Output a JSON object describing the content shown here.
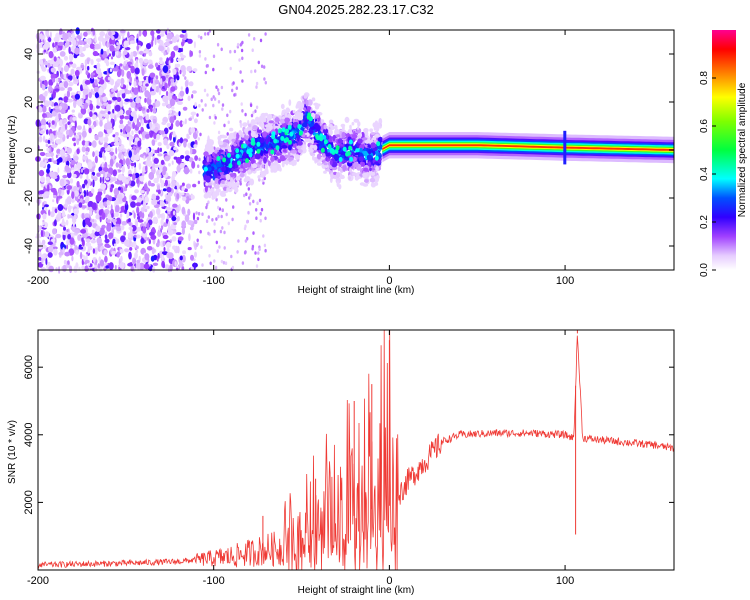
{
  "title": "GN04.2025.282.23.17.C32",
  "chart_data": [
    {
      "type": "heatmap",
      "name": "spectrogram",
      "xlabel": "Height of straight line (km)",
      "ylabel": "Frequency (Hz)",
      "xlim": [
        -200,
        162
      ],
      "ylim": [
        -50,
        50
      ],
      "xticks": [
        -200,
        -100,
        0,
        100
      ],
      "xtick_labels": [
        "-200",
        "-100",
        "0",
        "100"
      ],
      "yticks": [
        -40,
        -20,
        0,
        20,
        40
      ],
      "ytick_labels": [
        "-40",
        "-20",
        "0",
        "20",
        "40"
      ],
      "colorbar": {
        "label": "Normalized spectral amplitude",
        "range": [
          0,
          1
        ],
        "ticks": [
          0.0,
          0.2,
          0.4,
          0.6,
          0.8
        ],
        "tick_labels": [
          "0.0",
          "0.2",
          "0.4",
          "0.6",
          "0.8"
        ],
        "colormap": [
          "#ffffff",
          "#d6b3f7",
          "#8a2be2",
          "#3b00ff",
          "#0000ff",
          "#00ffff",
          "#00ff00",
          "#ffff00",
          "#ff8000",
          "#ff0000",
          "#ff0080"
        ]
      },
      "ridge": {
        "description_x": [
          -100,
          -90,
          -80,
          -70,
          -60,
          -50,
          -47,
          -45,
          -40,
          -30,
          -20,
          -10,
          -5,
          0,
          10,
          50,
          100,
          162
        ],
        "center_hz": [
          -8,
          -5,
          0,
          2,
          5,
          8,
          15,
          10,
          5,
          -2,
          0,
          -3,
          0,
          2,
          2,
          2,
          1,
          0
        ],
        "amplitude": [
          0.3,
          0.4,
          0.45,
          0.45,
          0.5,
          0.55,
          0.6,
          0.5,
          0.45,
          0.45,
          0.4,
          0.4,
          0.6,
          0.8,
          0.85,
          0.9,
          0.85,
          0.7
        ]
      }
    },
    {
      "type": "line",
      "name": "snr",
      "xlabel": "Height of straight line (km)",
      "ylabel": "SNR (10 * v/v)",
      "xlim": [
        -200,
        162
      ],
      "ylim": [
        0,
        7100
      ],
      "xticks": [
        -200,
        -100,
        0,
        100
      ],
      "xtick_labels": [
        "-200",
        "-100",
        "0",
        "100"
      ],
      "yticks": [
        2000,
        4000,
        6000
      ],
      "ytick_labels": [
        "2000",
        "4000",
        "6000"
      ],
      "color": "#ef3a35",
      "x": [
        -200,
        -150,
        -120,
        -100,
        -90,
        -80,
        -70,
        -60,
        -50,
        -40,
        -30,
        -20,
        -10,
        0,
        5,
        10,
        20,
        30,
        40,
        60,
        80,
        100,
        105,
        107,
        110,
        130,
        150,
        162
      ],
      "y": [
        150,
        200,
        250,
        350,
        400,
        500,
        600,
        650,
        800,
        1000,
        1300,
        1600,
        1800,
        1900,
        2200,
        2600,
        3200,
        3800,
        4000,
        4050,
        4050,
        4000,
        3900,
        7000,
        3900,
        3800,
        3700,
        3600
      ],
      "spikes": [
        {
          "x": -72,
          "y": 1600
        },
        {
          "x": -42,
          "y": 2700
        },
        {
          "x": -20,
          "y": 5000
        },
        {
          "x": -10,
          "y": 5500
        },
        {
          "x": 0,
          "y": 6800
        },
        {
          "x": 107,
          "y": 7100
        },
        {
          "x": 106,
          "y": 1050
        }
      ]
    }
  ]
}
